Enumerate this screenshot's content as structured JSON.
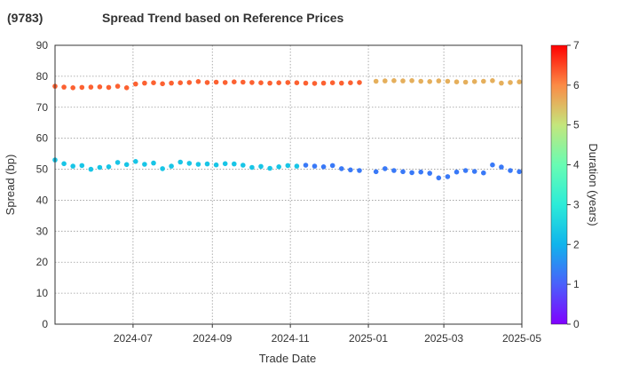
{
  "chart_data": {
    "type": "scatter",
    "title": "Spread Trend based on Reference Prices",
    "ticker": "(9783)",
    "xlabel": "Trade Date",
    "ylabel": "Spread (bp)",
    "x_range": [
      "2024-05-01",
      "2025-05-01"
    ],
    "ylim": [
      0,
      90
    ],
    "y_ticks": [
      0,
      10,
      20,
      30,
      40,
      50,
      60,
      70,
      80,
      90
    ],
    "x_ticks": [
      {
        "date": "2024-07-01",
        "label": "2024-07"
      },
      {
        "date": "2024-09-01",
        "label": "2024-09"
      },
      {
        "date": "2024-11-01",
        "label": "2024-11"
      },
      {
        "date": "2025-01-01",
        "label": "2025-01"
      },
      {
        "date": "2025-03-01",
        "label": "2025-03"
      },
      {
        "date": "2025-05-01",
        "label": "2025-05"
      }
    ],
    "grid": true,
    "colorbar": {
      "label": "Duration (years)",
      "range": [
        0,
        7
      ],
      "ticks": [
        0,
        1,
        2,
        3,
        4,
        5,
        6,
        7
      ],
      "colormap": "rainbow"
    },
    "series": [
      {
        "duration": 6.3,
        "points": [
          [
            "2024-05-01",
            76.8
          ],
          [
            "2024-05-08",
            76.5
          ],
          [
            "2024-05-15",
            76.3
          ],
          [
            "2024-05-22",
            76.4
          ],
          [
            "2024-05-29",
            76.5
          ],
          [
            "2024-06-05",
            76.6
          ],
          [
            "2024-06-12",
            76.4
          ],
          [
            "2024-06-19",
            76.8
          ],
          [
            "2024-06-26",
            76.3
          ],
          [
            "2024-07-03",
            77.5
          ],
          [
            "2024-07-10",
            77.8
          ],
          [
            "2024-07-17",
            77.9
          ],
          [
            "2024-07-24",
            77.6
          ],
          [
            "2024-07-31",
            77.8
          ],
          [
            "2024-08-07",
            77.9
          ],
          [
            "2024-08-14",
            78.0
          ],
          [
            "2024-08-21",
            78.3
          ],
          [
            "2024-08-28",
            78.0
          ],
          [
            "2024-09-04",
            78.1
          ],
          [
            "2024-09-11",
            78.0
          ],
          [
            "2024-09-18",
            78.2
          ],
          [
            "2024-09-25",
            78.1
          ],
          [
            "2024-10-02",
            78.0
          ],
          [
            "2024-10-09",
            77.9
          ],
          [
            "2024-10-16",
            77.8
          ],
          [
            "2024-10-23",
            77.9
          ],
          [
            "2024-10-30",
            78.0
          ],
          [
            "2024-11-06",
            77.9
          ],
          [
            "2024-11-13",
            77.8
          ],
          [
            "2024-11-20",
            77.7
          ],
          [
            "2024-11-27",
            77.8
          ],
          [
            "2024-12-04",
            77.9
          ],
          [
            "2024-12-11",
            77.8
          ],
          [
            "2024-12-18",
            77.9
          ],
          [
            "2024-12-25",
            78.0
          ]
        ]
      },
      {
        "duration": 5.6,
        "points": [
          [
            "2025-01-07",
            78.4
          ],
          [
            "2025-01-14",
            78.5
          ],
          [
            "2025-01-21",
            78.6
          ],
          [
            "2025-01-28",
            78.5
          ],
          [
            "2025-02-04",
            78.6
          ],
          [
            "2025-02-11",
            78.4
          ],
          [
            "2025-02-18",
            78.3
          ],
          [
            "2025-02-25",
            78.5
          ],
          [
            "2025-03-04",
            78.4
          ],
          [
            "2025-03-11",
            78.2
          ],
          [
            "2025-03-18",
            78.1
          ],
          [
            "2025-03-25",
            78.3
          ],
          [
            "2025-04-01",
            78.4
          ],
          [
            "2025-04-08",
            78.6
          ],
          [
            "2025-04-15",
            77.8
          ],
          [
            "2025-04-22",
            78.0
          ],
          [
            "2025-04-29",
            78.2
          ]
        ]
      },
      {
        "duration": 2.3,
        "points": [
          [
            "2024-05-01",
            53.0
          ],
          [
            "2024-05-08",
            51.8
          ],
          [
            "2024-05-15",
            51.0
          ],
          [
            "2024-05-22",
            51.2
          ],
          [
            "2024-05-29",
            50.0
          ],
          [
            "2024-06-05",
            50.6
          ],
          [
            "2024-06-12",
            50.8
          ],
          [
            "2024-06-19",
            52.2
          ],
          [
            "2024-06-26",
            51.5
          ],
          [
            "2024-07-03",
            52.5
          ],
          [
            "2024-07-10",
            51.6
          ],
          [
            "2024-07-17",
            52.0
          ],
          [
            "2024-07-24",
            50.2
          ],
          [
            "2024-07-31",
            51.0
          ],
          [
            "2024-08-07",
            52.3
          ],
          [
            "2024-08-14",
            51.9
          ],
          [
            "2024-08-21",
            51.6
          ],
          [
            "2024-08-28",
            51.7
          ],
          [
            "2024-09-04",
            51.4
          ],
          [
            "2024-09-11",
            51.8
          ],
          [
            "2024-09-18",
            51.7
          ],
          [
            "2024-09-25",
            51.3
          ],
          [
            "2024-10-02",
            50.6
          ],
          [
            "2024-10-09",
            50.9
          ],
          [
            "2024-10-16",
            50.3
          ],
          [
            "2024-10-23",
            50.8
          ],
          [
            "2024-10-30",
            51.2
          ],
          [
            "2024-11-06",
            51.0
          ]
        ]
      },
      {
        "duration": 1.3,
        "points": [
          [
            "2024-11-13",
            51.3
          ],
          [
            "2024-11-20",
            51.0
          ],
          [
            "2024-11-27",
            50.8
          ],
          [
            "2024-12-04",
            51.2
          ],
          [
            "2024-12-11",
            50.2
          ],
          [
            "2024-12-18",
            49.8
          ],
          [
            "2024-12-25",
            49.6
          ],
          [
            "2025-01-07",
            49.2
          ],
          [
            "2025-01-14",
            50.2
          ],
          [
            "2025-01-21",
            49.6
          ],
          [
            "2025-01-28",
            49.2
          ],
          [
            "2025-02-04",
            48.9
          ],
          [
            "2025-02-11",
            49.1
          ],
          [
            "2025-02-18",
            48.7
          ],
          [
            "2025-02-25",
            47.2
          ],
          [
            "2025-03-04",
            47.6
          ],
          [
            "2025-03-11",
            49.1
          ],
          [
            "2025-03-18",
            49.6
          ],
          [
            "2025-03-25",
            49.3
          ],
          [
            "2025-04-01",
            48.8
          ],
          [
            "2025-04-08",
            51.4
          ],
          [
            "2025-04-15",
            50.7
          ],
          [
            "2025-04-22",
            49.6
          ],
          [
            "2025-04-29",
            49.2
          ]
        ]
      }
    ]
  }
}
